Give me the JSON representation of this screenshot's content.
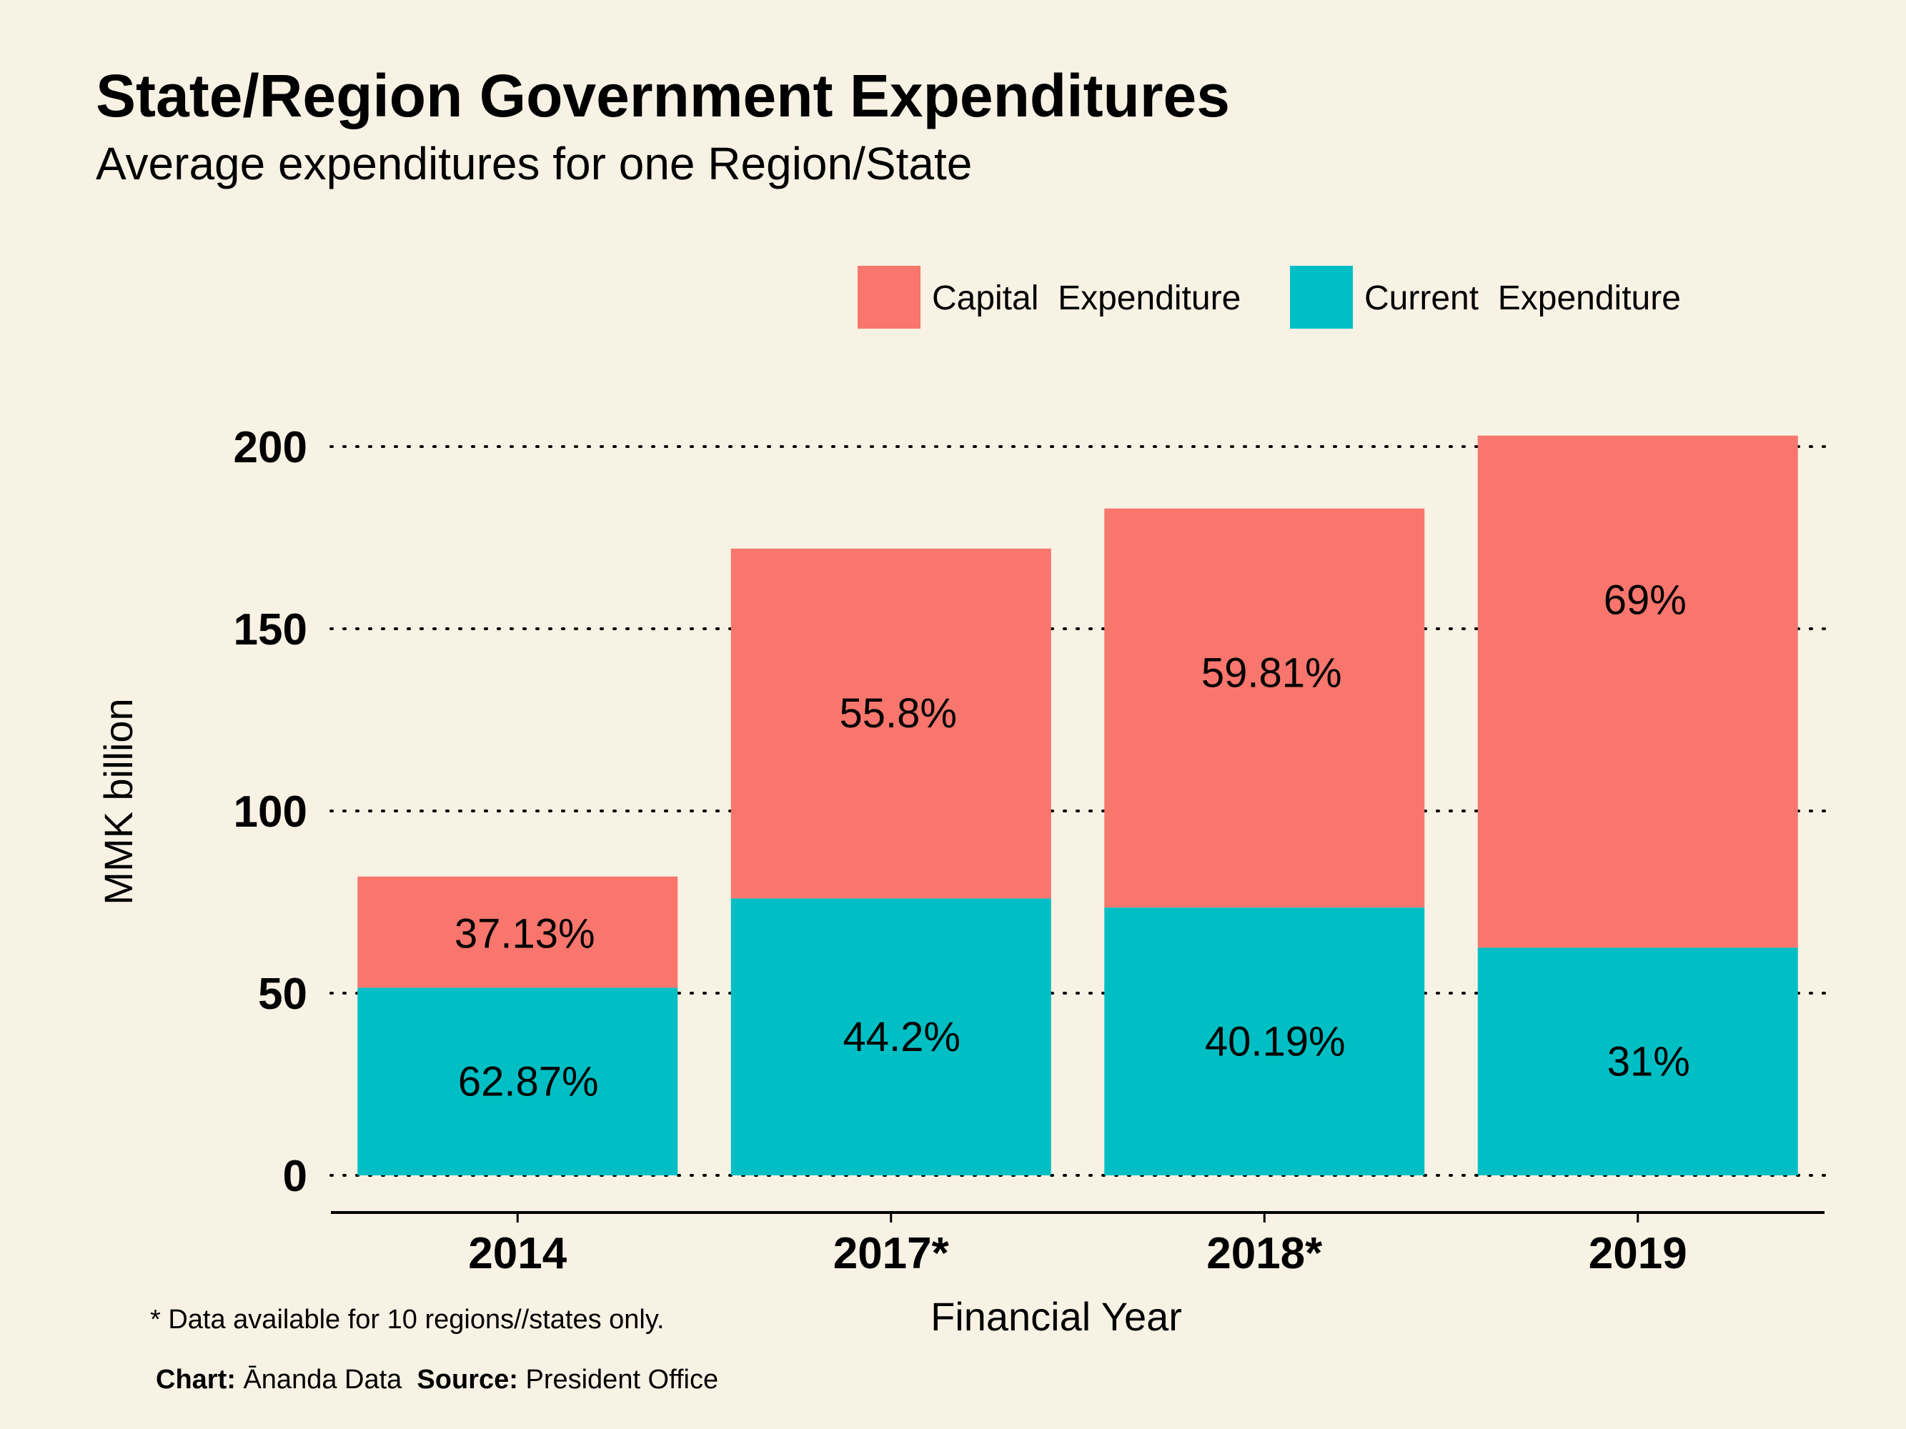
{
  "colors": {
    "background": "#F8F2E4",
    "capital": "#F8766D",
    "current": "#00BFC4"
  },
  "header": {
    "title": "State/Region Government Expenditures",
    "subtitle": "Average expenditures for one Region/State"
  },
  "footer": {
    "note": "* Data available for 10 regions//states only.",
    "chart_label": "Chart:",
    "chart_value": "Ānanda Data",
    "source_label": "Source:",
    "source_value": "President Office"
  },
  "chart_data": {
    "type": "bar",
    "stacked": true,
    "categories": [
      "2014",
      "2017*",
      "2018*",
      "2019"
    ],
    "series": [
      {
        "name": "Current Expenditure",
        "values": [
          51.5,
          76,
          73.5,
          62.5
        ],
        "labels": [
          "62.87%",
          "44.2%",
          "40.19%",
          "31%"
        ]
      },
      {
        "name": "Capital Expenditure",
        "values": [
          30.5,
          96,
          109.5,
          140.5
        ],
        "labels": [
          "37.13%",
          "55.8%",
          "59.81%",
          "69%"
        ]
      }
    ],
    "xlabel": "Financial Year",
    "ylabel": "MMK billion",
    "ylim": [
      0,
      200
    ],
    "yticks": [
      0,
      50,
      100,
      150,
      200
    ],
    "grid": "horizontal-dotted",
    "legend_position": "top-right"
  }
}
